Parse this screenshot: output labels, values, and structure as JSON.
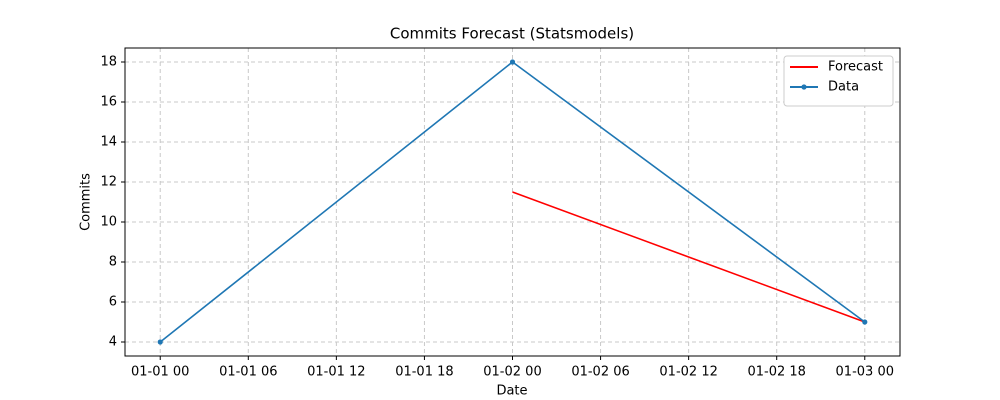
{
  "chart_data": {
    "type": "line",
    "title": "Commits Forecast (Statsmodels)",
    "x_label": "Date",
    "y_label": "Commits",
    "series": [
      {
        "name": "Forecast",
        "color": "#ff0000",
        "marker": false,
        "x": [
          "01-02 00",
          "01-03 00"
        ],
        "values": [
          11.5,
          5
        ]
      },
      {
        "name": "Data",
        "color": "#1f77b4",
        "marker": true,
        "x": [
          "01-01 00",
          "01-02 00",
          "01-03 00"
        ],
        "values": [
          4,
          18,
          5
        ]
      }
    ],
    "xlim": [
      "12-31 21.6",
      "01-03 02.4"
    ],
    "xticks": [
      "01-01 00",
      "01-01 06",
      "01-01 12",
      "01-01 18",
      "01-02 00",
      "01-02 06",
      "01-02 12",
      "01-02 18",
      "01-03 00"
    ],
    "ylim": [
      3.3,
      18.7
    ],
    "yticks": [
      4,
      6,
      8,
      10,
      12,
      14,
      16,
      18
    ],
    "grid": true,
    "legend": "upper right"
  }
}
